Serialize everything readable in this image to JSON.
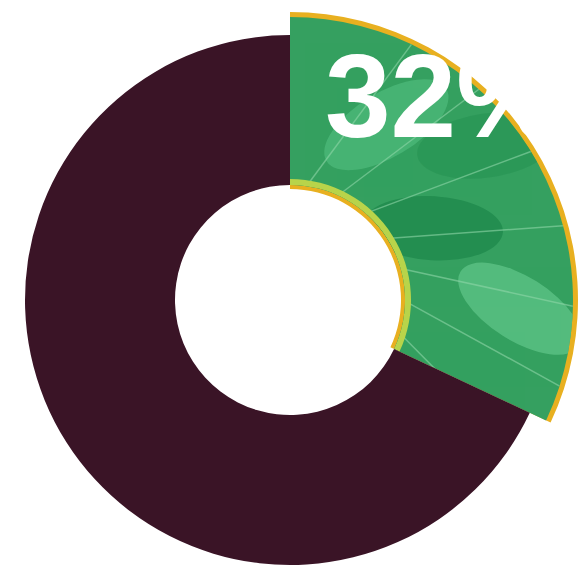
{
  "chart_data": {
    "type": "pie",
    "values": [
      32,
      68
    ],
    "value_labels": [
      "32%",
      null
    ],
    "colors": [
      "#35a060",
      "#3a1426"
    ],
    "data_labels": true
  }
}
